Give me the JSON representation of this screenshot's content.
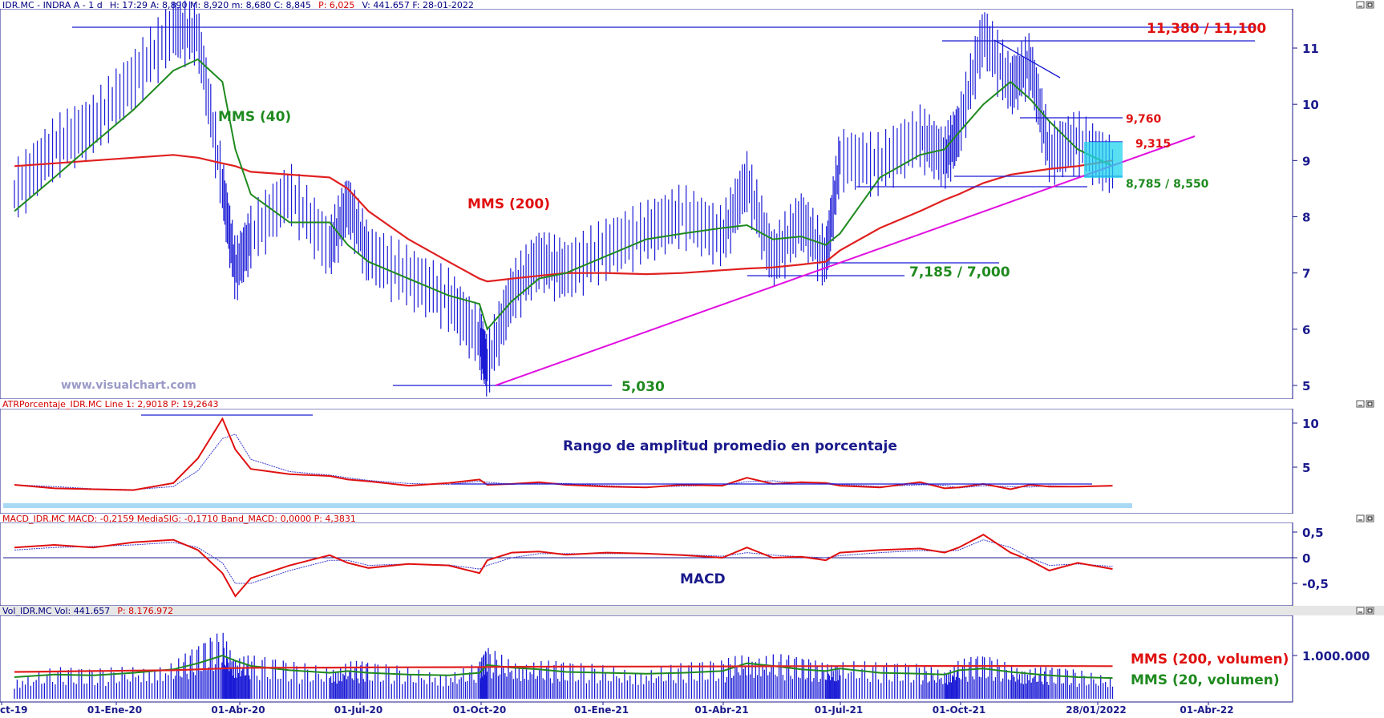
{
  "price_panel": {
    "header_symbol": "IDR.MC - INDRA A -  1 d",
    "header_fields": "H: 17:29  A: 8,890  M: 8,920  m: 8,680  C: 8,845",
    "header_pct": "P: 6,025",
    "header_tail": "V: 441.657  F: 28-01-2022",
    "watermark": "www.visualchart.com",
    "annotations": {
      "top": "11,380 / 11,100",
      "r9760": "9,760",
      "r9315": "9,315",
      "s8785": "8,785 / 8,550",
      "mms40": "MMS (40)",
      "mms200": "MMS (200)",
      "s7185": "7,185 / 7,000",
      "low5030": "5,030"
    }
  },
  "atr_panel": {
    "header": "ATRPorcentaje_IDR.MC  Line 1: 2,9018  P: 19,2643",
    "title": "Rango de amplitud promedio en porcentaje"
  },
  "macd_panel": {
    "header": "MACD_IDR.MC  MACD: -0,2159  MediaSIG: -0,1710  Band_MACD: 0,0000  P: 4,3831",
    "title": "MACD"
  },
  "vol_panel": {
    "header": "Vol_IDR.MC  Vol: 441.657",
    "header_pct": "P: 8.176.972",
    "label_mms200": "MMS (200, volumen)",
    "label_mms20": "MMS (20, volumen)"
  },
  "x_axis": {
    "labels": [
      "ct-19",
      "01-Ene-20",
      "01-Abr-20",
      "01-Jul-20",
      "01-Oct-20",
      "01-Ene-21",
      "01-Abr-21",
      "01-Jul-21",
      "01-Oct-21",
      "28/01/2022",
      "01-Abr-22"
    ]
  },
  "colors": {
    "price_bars": "#1a1ad6",
    "mms40": "#1f8a1f",
    "mms200": "#e02020",
    "trendline": "#e010e0",
    "level_lines": "#1a1ad6",
    "highlight_box": "#22d4ee"
  },
  "chart_data": [
    {
      "type": "line",
      "panel": "price",
      "y_ticks": [
        5,
        6,
        7,
        8,
        9,
        10,
        11
      ],
      "ylim": [
        4.95,
        11.6
      ],
      "x_dates": [
        "2019-10-01",
        "2019-11-01",
        "2019-12-01",
        "2020-01-01",
        "2020-02-01",
        "2020-02-20",
        "2020-03-10",
        "2020-03-20",
        "2020-04-01",
        "2020-05-01",
        "2020-06-01",
        "2020-06-15",
        "2020-07-01",
        "2020-08-01",
        "2020-09-01",
        "2020-09-25",
        "2020-10-01",
        "2020-10-20",
        "2020-11-10",
        "2020-12-01",
        "2021-01-01",
        "2021-02-01",
        "2021-03-01",
        "2021-04-01",
        "2021-04-20",
        "2021-05-10",
        "2021-06-01",
        "2021-06-20",
        "2021-07-01",
        "2021-08-01",
        "2021-09-01",
        "2021-09-20",
        "2021-10-01",
        "2021-10-20",
        "2021-11-10",
        "2021-11-25",
        "2021-12-10",
        "2022-01-01",
        "2022-01-28"
      ],
      "series": [
        {
          "name": "IDR.MC",
          "values": [
            8.4,
            9.2,
            9.6,
            10.4,
            11.3,
            11.2,
            8.5,
            7.0,
            7.6,
            8.4,
            7.4,
            8.2,
            7.3,
            6.9,
            6.5,
            5.8,
            5.3,
            6.6,
            7.2,
            7.0,
            7.4,
            7.7,
            8.0,
            7.6,
            8.6,
            7.2,
            7.9,
            7.2,
            9.0,
            8.9,
            9.4,
            9.0,
            9.5,
            11.2,
            10.3,
            10.7,
            9.1,
            9.3,
            8.85
          ]
        },
        {
          "name": "MMS (40)",
          "values": [
            8.1,
            8.7,
            9.3,
            9.9,
            10.6,
            10.8,
            10.4,
            9.2,
            8.4,
            7.9,
            7.9,
            7.5,
            7.2,
            6.9,
            6.6,
            6.45,
            6.0,
            6.5,
            6.9,
            7.0,
            7.3,
            7.6,
            7.7,
            7.8,
            7.85,
            7.6,
            7.65,
            7.5,
            7.7,
            8.7,
            9.1,
            9.2,
            9.5,
            10.0,
            10.4,
            10.1,
            9.7,
            9.2,
            8.9
          ]
        },
        {
          "name": "MMS (200)",
          "values": [
            8.9,
            8.95,
            9.0,
            9.05,
            9.1,
            9.05,
            8.95,
            8.9,
            8.8,
            8.75,
            8.7,
            8.5,
            8.1,
            7.6,
            7.2,
            6.9,
            6.85,
            6.9,
            6.95,
            7.0,
            7.0,
            6.98,
            7.0,
            7.05,
            7.08,
            7.1,
            7.15,
            7.2,
            7.4,
            7.8,
            8.1,
            8.3,
            8.4,
            8.6,
            8.75,
            8.8,
            8.85,
            8.9,
            9.0
          ]
        }
      ]
    },
    {
      "type": "line",
      "panel": "atr_pct",
      "y_ticks": [
        5,
        10
      ],
      "series": [
        {
          "name": "Line 1",
          "values": [
            3.0,
            2.6,
            2.5,
            2.4,
            3.2,
            6.0,
            10.5,
            7.0,
            4.8,
            4.2,
            4.0,
            3.6,
            3.4,
            2.9,
            3.2,
            3.6,
            3.0,
            3.1,
            3.3,
            3.0,
            2.8,
            2.7,
            3.0,
            2.9,
            3.8,
            3.1,
            3.3,
            3.2,
            2.9,
            2.7,
            3.3,
            2.6,
            2.7,
            3.1,
            2.5,
            3.0,
            2.8,
            2.8,
            2.9
          ]
        }
      ]
    },
    {
      "type": "line",
      "panel": "macd",
      "y_ticks": [
        -0.5,
        0,
        0.5
      ],
      "series": [
        {
          "name": "MACD",
          "values": [
            0.2,
            0.25,
            0.2,
            0.3,
            0.35,
            0.15,
            -0.3,
            -0.75,
            -0.4,
            -0.15,
            0.05,
            -0.1,
            -0.2,
            -0.12,
            -0.15,
            -0.3,
            -0.05,
            0.1,
            0.12,
            0.06,
            0.1,
            0.08,
            0.05,
            0.0,
            0.2,
            0.0,
            0.02,
            -0.05,
            0.1,
            0.15,
            0.18,
            0.1,
            0.2,
            0.45,
            0.1,
            -0.05,
            -0.25,
            -0.1,
            -0.22
          ]
        },
        {
          "name": "MediaSIG",
          "values": [
            0.15,
            0.2,
            0.22,
            0.25,
            0.3,
            0.2,
            -0.1,
            -0.5,
            -0.5,
            -0.25,
            -0.05,
            -0.05,
            -0.15,
            -0.12,
            -0.14,
            -0.22,
            -0.15,
            0.0,
            0.08,
            0.08,
            0.08,
            0.08,
            0.06,
            0.03,
            0.1,
            0.05,
            0.02,
            0.0,
            0.04,
            0.1,
            0.14,
            0.12,
            0.15,
            0.35,
            0.2,
            0.0,
            -0.15,
            -0.12,
            -0.17
          ]
        }
      ]
    },
    {
      "type": "bar",
      "panel": "volume",
      "y_ticks": [
        1000000
      ],
      "series": [
        {
          "name": "Vol",
          "values": [
            420000,
            560000,
            500000,
            620000,
            700000,
            900000,
            1200000,
            850000,
            760000,
            640000,
            600000,
            700000,
            620000,
            560000,
            520000,
            640000,
            880000,
            760000,
            700000,
            620000,
            600000,
            580000,
            620000,
            660000,
            900000,
            820000,
            700000,
            640000,
            760000,
            620000,
            600000,
            560000,
            700000,
            740000,
            640000,
            600000,
            540000,
            500000,
            441657
          ]
        },
        {
          "name": "MMS (200, volumen)",
          "values": [
            620000,
            630000,
            640000,
            650000,
            660000,
            680000,
            700000,
            710000,
            715000,
            718000,
            720000,
            722000,
            725000,
            728000,
            730000,
            732000,
            735000,
            738000,
            740000,
            742000,
            744000,
            745000,
            746000,
            748000,
            750000,
            752000,
            753000,
            754000,
            755000,
            756000,
            757000,
            758000,
            758000,
            758000,
            758000,
            757000,
            756000,
            755000,
            754000
          ]
        },
        {
          "name": "MMS (20, volumen)",
          "values": [
            500000,
            560000,
            540000,
            600000,
            680000,
            820000,
            1000000,
            880000,
            760000,
            660000,
            600000,
            640000,
            600000,
            560000,
            540000,
            600000,
            780000,
            720000,
            680000,
            620000,
            600000,
            580000,
            600000,
            640000,
            820000,
            760000,
            680000,
            640000,
            700000,
            600000,
            580000,
            560000,
            660000,
            700000,
            620000,
            580000,
            540000,
            500000,
            480000
          ]
        }
      ]
    }
  ]
}
